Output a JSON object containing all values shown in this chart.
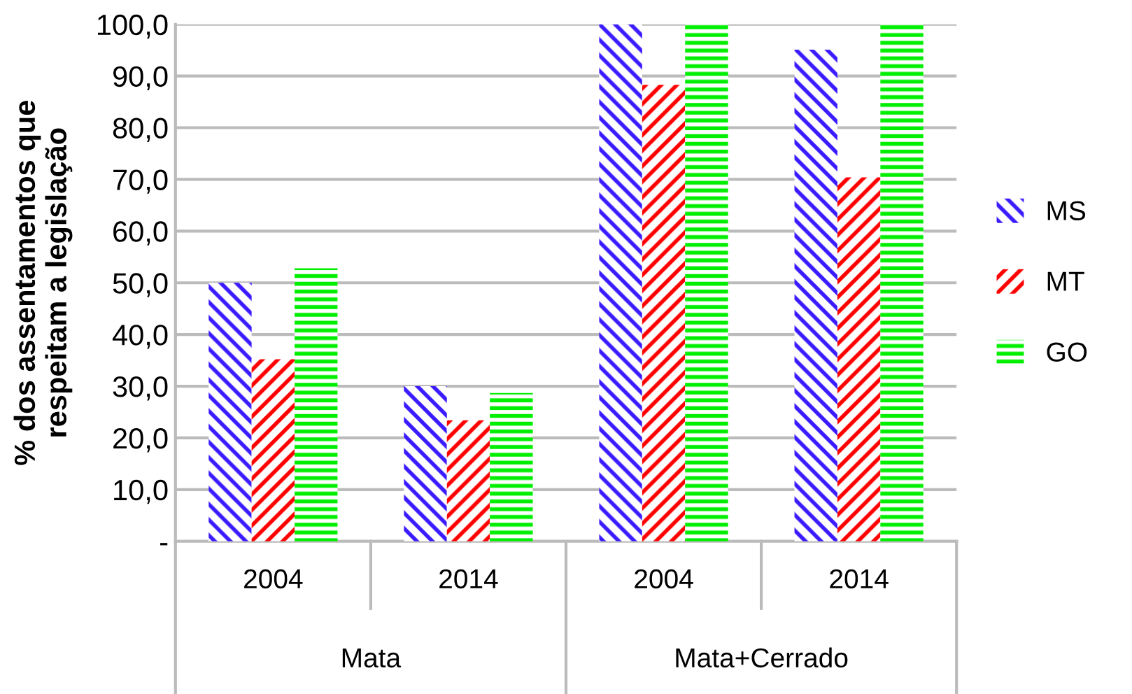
{
  "chart_data": {
    "type": "bar",
    "ylabel": "% dos assentamentos que\nrespeitam a legislação",
    "categories": [
      "2004",
      "2014",
      "2004",
      "2014"
    ],
    "series": [
      {
        "name": "MS",
        "color": "#3a1aff",
        "values": [
          50.0,
          30.0,
          100.0,
          95.1
        ]
      },
      {
        "name": "MT",
        "color": "#ff0000",
        "values": [
          35.2,
          23.4,
          88.3,
          70.4
        ]
      },
      {
        "name": "GO",
        "color": "#00ee00",
        "values": [
          52.8,
          28.7,
          100.0,
          100.0
        ]
      }
    ],
    "annotations": [
      "Mata",
      "Mata+Cerrado"
    ],
    "ylim": [
      0,
      100
    ],
    "yticks": [
      {
        "value": 0,
        "label": "-"
      },
      {
        "value": 10,
        "label": "10,0"
      },
      {
        "value": 20,
        "label": "20,0"
      },
      {
        "value": 30,
        "label": "30,0"
      },
      {
        "value": 40,
        "label": "40,0"
      },
      {
        "value": 50,
        "label": "50,0"
      },
      {
        "value": 60,
        "label": "60,0"
      },
      {
        "value": 70,
        "label": "70,0"
      },
      {
        "value": 80,
        "label": "80,0"
      },
      {
        "value": 90,
        "label": "90,0"
      },
      {
        "value": 100,
        "label": "100,0"
      }
    ],
    "grid": "y",
    "legend": "right"
  }
}
